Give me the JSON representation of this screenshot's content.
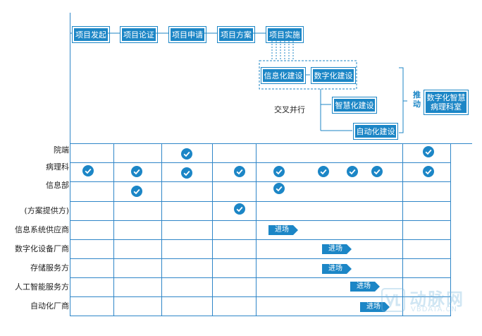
{
  "flow": {
    "steps": [
      "项目发起",
      "项目论证",
      "项目申请",
      "项目方案",
      "项目实施"
    ],
    "parallel": [
      "信息化建设",
      "数字化建设",
      "智慧化建设",
      "自动化建设"
    ],
    "parallel_label": "交叉并行",
    "drive_label": "推\n动",
    "target": "数字化智慧\n病理科室"
  },
  "rows": [
    "院端",
    "病理科",
    "信息部",
    "(方案提供方)",
    "信息系统供应商",
    "数字化设备厂商",
    "存储服务方",
    "人工智能服务方",
    "自动化厂商"
  ],
  "tags": {
    "entry": "进场"
  },
  "watermark": {
    "name": "动脉网",
    "url": "VBDATA.CN"
  },
  "colors": {
    "primary": "#1c86c6",
    "grid": "#2f86c8",
    "text": "#222222"
  }
}
